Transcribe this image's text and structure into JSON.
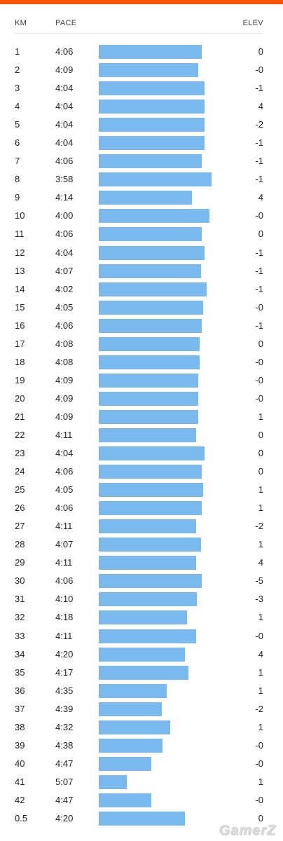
{
  "header": {
    "km_label": "KM",
    "pace_label": "PACE",
    "elev_label": "ELEV"
  },
  "colors": {
    "accent": "#fc5200",
    "bar": "#7ab9ed",
    "text": "#242428"
  },
  "splits": [
    {
      "km": "1",
      "pace": "4:06",
      "elev": "0"
    },
    {
      "km": "2",
      "pace": "4:09",
      "elev": "-0"
    },
    {
      "km": "3",
      "pace": "4:04",
      "elev": "-1"
    },
    {
      "km": "4",
      "pace": "4:04",
      "elev": "4"
    },
    {
      "km": "5",
      "pace": "4:04",
      "elev": "-2"
    },
    {
      "km": "6",
      "pace": "4:04",
      "elev": "-1"
    },
    {
      "km": "7",
      "pace": "4:06",
      "elev": "-1"
    },
    {
      "km": "8",
      "pace": "3:58",
      "elev": "-1"
    },
    {
      "km": "9",
      "pace": "4:14",
      "elev": "4"
    },
    {
      "km": "10",
      "pace": "4:00",
      "elev": "-0"
    },
    {
      "km": "11",
      "pace": "4:06",
      "elev": "0"
    },
    {
      "km": "12",
      "pace": "4:04",
      "elev": "-1"
    },
    {
      "km": "13",
      "pace": "4:07",
      "elev": "-1"
    },
    {
      "km": "14",
      "pace": "4:02",
      "elev": "-1"
    },
    {
      "km": "15",
      "pace": "4:05",
      "elev": "-0"
    },
    {
      "km": "16",
      "pace": "4:06",
      "elev": "-1"
    },
    {
      "km": "17",
      "pace": "4:08",
      "elev": "0"
    },
    {
      "km": "18",
      "pace": "4:08",
      "elev": "-0"
    },
    {
      "km": "19",
      "pace": "4:09",
      "elev": "-0"
    },
    {
      "km": "20",
      "pace": "4:09",
      "elev": "-0"
    },
    {
      "km": "21",
      "pace": "4:09",
      "elev": "1"
    },
    {
      "km": "22",
      "pace": "4:11",
      "elev": "0"
    },
    {
      "km": "23",
      "pace": "4:04",
      "elev": "0"
    },
    {
      "km": "24",
      "pace": "4:06",
      "elev": "0"
    },
    {
      "km": "25",
      "pace": "4:05",
      "elev": "1"
    },
    {
      "km": "26",
      "pace": "4:06",
      "elev": "1"
    },
    {
      "km": "27",
      "pace": "4:11",
      "elev": "-2"
    },
    {
      "km": "28",
      "pace": "4:07",
      "elev": "1"
    },
    {
      "km": "29",
      "pace": "4:11",
      "elev": "4"
    },
    {
      "km": "30",
      "pace": "4:06",
      "elev": "-5"
    },
    {
      "km": "31",
      "pace": "4:10",
      "elev": "-3"
    },
    {
      "km": "32",
      "pace": "4:18",
      "elev": "1"
    },
    {
      "km": "33",
      "pace": "4:11",
      "elev": "-0"
    },
    {
      "km": "34",
      "pace": "4:20",
      "elev": "4"
    },
    {
      "km": "35",
      "pace": "4:17",
      "elev": "1"
    },
    {
      "km": "36",
      "pace": "4:35",
      "elev": "1"
    },
    {
      "km": "37",
      "pace": "4:39",
      "elev": "-2"
    },
    {
      "km": "38",
      "pace": "4:32",
      "elev": "1"
    },
    {
      "km": "39",
      "pace": "4:38",
      "elev": "-0"
    },
    {
      "km": "40",
      "pace": "4:47",
      "elev": "-0"
    },
    {
      "km": "41",
      "pace": "5:07",
      "elev": "1"
    },
    {
      "km": "42",
      "pace": "4:47",
      "elev": "-0"
    },
    {
      "km": "0.5",
      "pace": "4:20",
      "elev": "0"
    }
  ],
  "watermark": "GamerZ"
}
